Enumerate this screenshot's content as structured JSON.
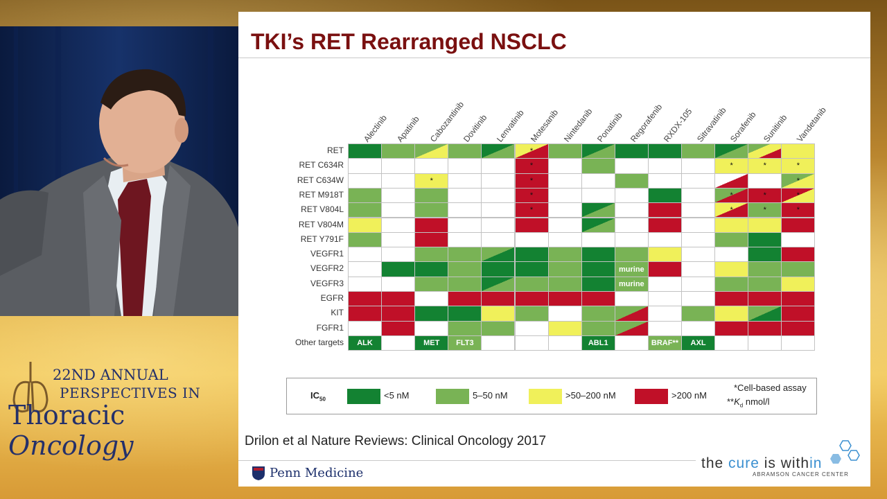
{
  "conference": {
    "line1": "22ND ANNUAL",
    "line2": "PERSPECTIVES IN",
    "line3a": "Thoracic",
    "line3b": "Oncology"
  },
  "slide": {
    "title": "TKI’s RET Rearranged NSCLC",
    "citation": "Drilon et al Nature Reviews: Clinical Oncology 2017",
    "penn": "Penn Medicine",
    "tagline_parts": [
      "the ",
      "cure",
      " is with",
      "in"
    ],
    "abramson": "ABRAMSON CANCER CENTER"
  },
  "colors": {
    "dg": "#138232",
    "lg": "#79b355",
    "yl": "#f0f05a",
    "rd": "#c01028",
    "wh": "#ffffff"
  },
  "chart_data": {
    "type": "table",
    "columns": [
      "Alectinib",
      "Apatinib",
      "Cabozantinib",
      "Dovitinib",
      "Lenvatinib",
      "Motesanib",
      "Nintedanib",
      "Ponatinib",
      "Regorafenib",
      "RXDX-105",
      "Sitravatinib",
      "Sorafenib",
      "Sunitinib",
      "Vandetanib"
    ],
    "rows": [
      "RET",
      "RET C634R",
      "RET C634W",
      "RET M918T",
      "RET V804L",
      "RET V804M",
      "RET Y791F",
      "VEGFR1",
      "VEGFR2",
      "VEGFR3",
      "EGFR",
      "KIT",
      "FGFR1",
      "Other targets"
    ],
    "cells": [
      [
        "dg",
        "lg",
        "lg/yl",
        "lg",
        "dg/lg",
        "yl/rd*",
        "lg",
        "dg/lg",
        "dg",
        "dg",
        "lg",
        "dg/lg",
        "lg/yl/rd",
        "yl"
      ],
      [
        "wh",
        "wh",
        "wh",
        "wh",
        "wh",
        "rd*",
        "wh",
        "lg",
        "wh",
        "wh",
        "wh",
        "yl*",
        "yl*",
        "yl*"
      ],
      [
        "wh",
        "wh",
        "yl*",
        "wh",
        "wh",
        "rd*",
        "wh",
        "wh",
        "lg",
        "wh",
        "wh",
        "wh/rd",
        "wh",
        "lg/yl*"
      ],
      [
        "lg",
        "wh",
        "lg",
        "wh",
        "wh",
        "rd*",
        "wh",
        "wh",
        "wh",
        "dg",
        "wh",
        "lg/rd*",
        "rd*",
        "rd/yl*"
      ],
      [
        "lg",
        "wh",
        "lg",
        "wh",
        "wh",
        "rd*",
        "wh",
        "dg/lg",
        "wh",
        "rd",
        "wh",
        "yl/rd*",
        "lg*",
        "rd*"
      ],
      [
        "yl",
        "wh",
        "rd",
        "wh",
        "wh",
        "rd",
        "wh",
        "dg/lg",
        "wh",
        "rd",
        "wh",
        "yl",
        "yl",
        "rd"
      ],
      [
        "lg",
        "wh",
        "rd",
        "wh",
        "wh",
        "wh",
        "wh",
        "wh",
        "wh",
        "wh",
        "wh",
        "lg",
        "dg",
        "wh"
      ],
      [
        "wh",
        "wh",
        "lg",
        "lg",
        "lg/dg",
        "dg",
        "lg",
        "dg",
        "lg",
        "yl",
        "wh",
        "wh",
        "dg",
        "rd"
      ],
      [
        "wh",
        "dg",
        "dg",
        "lg",
        "dg",
        "dg",
        "lg",
        "dg",
        "lg:murine",
        "rd",
        "wh",
        "yl",
        "lg",
        "lg"
      ],
      [
        "wh",
        "wh",
        "lg",
        "lg",
        "dg/lg",
        "lg",
        "lg",
        "dg",
        "lg:murine",
        "wh",
        "wh",
        "lg",
        "lg",
        "yl"
      ],
      [
        "rd",
        "rd",
        "wh",
        "rd",
        "rd",
        "rd",
        "rd",
        "rd",
        "wh",
        "wh",
        "wh",
        "rd",
        "rd",
        "rd"
      ],
      [
        "rd",
        "rd",
        "dg",
        "dg",
        "yl",
        "lg",
        "wh",
        "lg",
        "lg/rd",
        "wh",
        "lg",
        "yl",
        "lg/dg",
        "rd"
      ],
      [
        "wh",
        "rd",
        "wh",
        "lg",
        "lg",
        "wh",
        "yl",
        "lg",
        "lg/rd",
        "wh",
        "wh",
        "rd",
        "rd",
        "rd"
      ],
      [
        "dg:ALK",
        "wh",
        "dg:MET",
        "lg:FLT3",
        "wh",
        "wh",
        "wh",
        "dg:ABL1",
        "wh",
        "lg:BRAF**",
        "dg:AXL",
        "wh",
        "wh",
        "wh"
      ]
    ],
    "legend": {
      "ic_main": "IC",
      "ic_sub": "50",
      "items": [
        {
          "color": "dg",
          "label": "<5 nM"
        },
        {
          "color": "lg",
          "label": "5–50 nM"
        },
        {
          "color": "yl",
          "label": ">50–200 nM"
        },
        {
          "color": "rd",
          "label": ">200 nM"
        }
      ],
      "note1": "*Cell-based assay",
      "note2_prefix": "**",
      "note2_k": "K",
      "note2_sub": "d",
      "note2_rest": " nmol/l"
    }
  }
}
